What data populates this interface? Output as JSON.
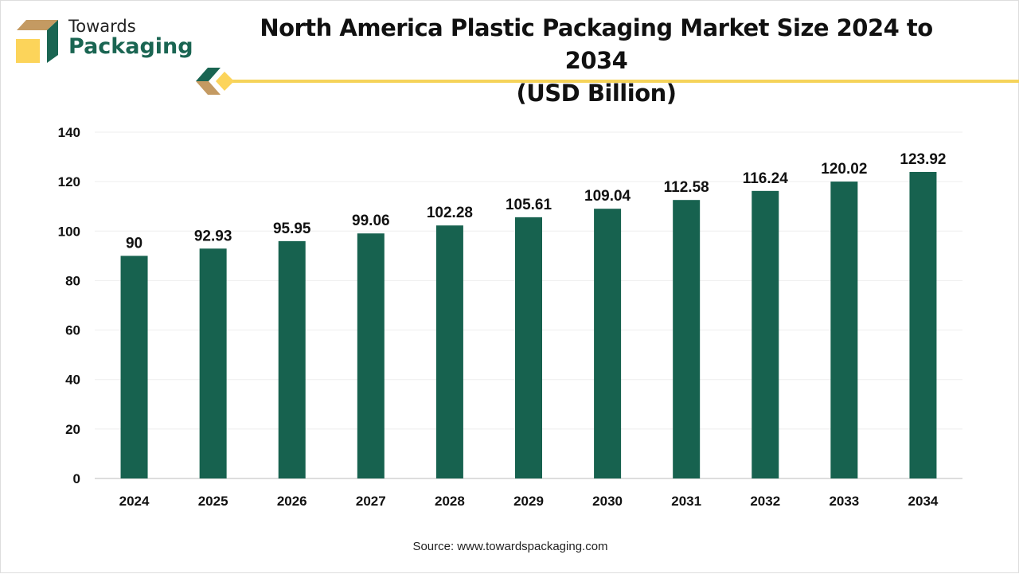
{
  "brand": {
    "line1": "Towards",
    "line2": "Packaging",
    "colors": {
      "green": "#1a6552",
      "tan": "#c49a62",
      "yellow": "#fcd45a"
    }
  },
  "title_line1": "North America Plastic Packaging Market Size 2024 to 2034",
  "title_line2": "(USD Billion)",
  "source": "Source: www.towardspackaging.com",
  "chart_data": {
    "type": "bar",
    "title": "North America Plastic Packaging Market Size 2024 to 2034 (USD Billion)",
    "categories": [
      "2024",
      "2025",
      "2026",
      "2027",
      "2028",
      "2029",
      "2030",
      "2031",
      "2032",
      "2033",
      "2034"
    ],
    "values": [
      90,
      92.93,
      95.95,
      99.06,
      102.28,
      105.61,
      109.04,
      112.58,
      116.24,
      120.02,
      123.92
    ],
    "labels": [
      "90",
      "92.93",
      "95.95",
      "99.06",
      "102.28",
      "105.61",
      "109.04",
      "112.58",
      "116.24",
      "120.02",
      "123.92"
    ],
    "ylim": [
      0,
      140
    ],
    "yticks": [
      0,
      20,
      40,
      60,
      80,
      100,
      120,
      140
    ],
    "grid": true,
    "bar_color": "#17624f",
    "accent_line_color": "#f5d35a"
  }
}
